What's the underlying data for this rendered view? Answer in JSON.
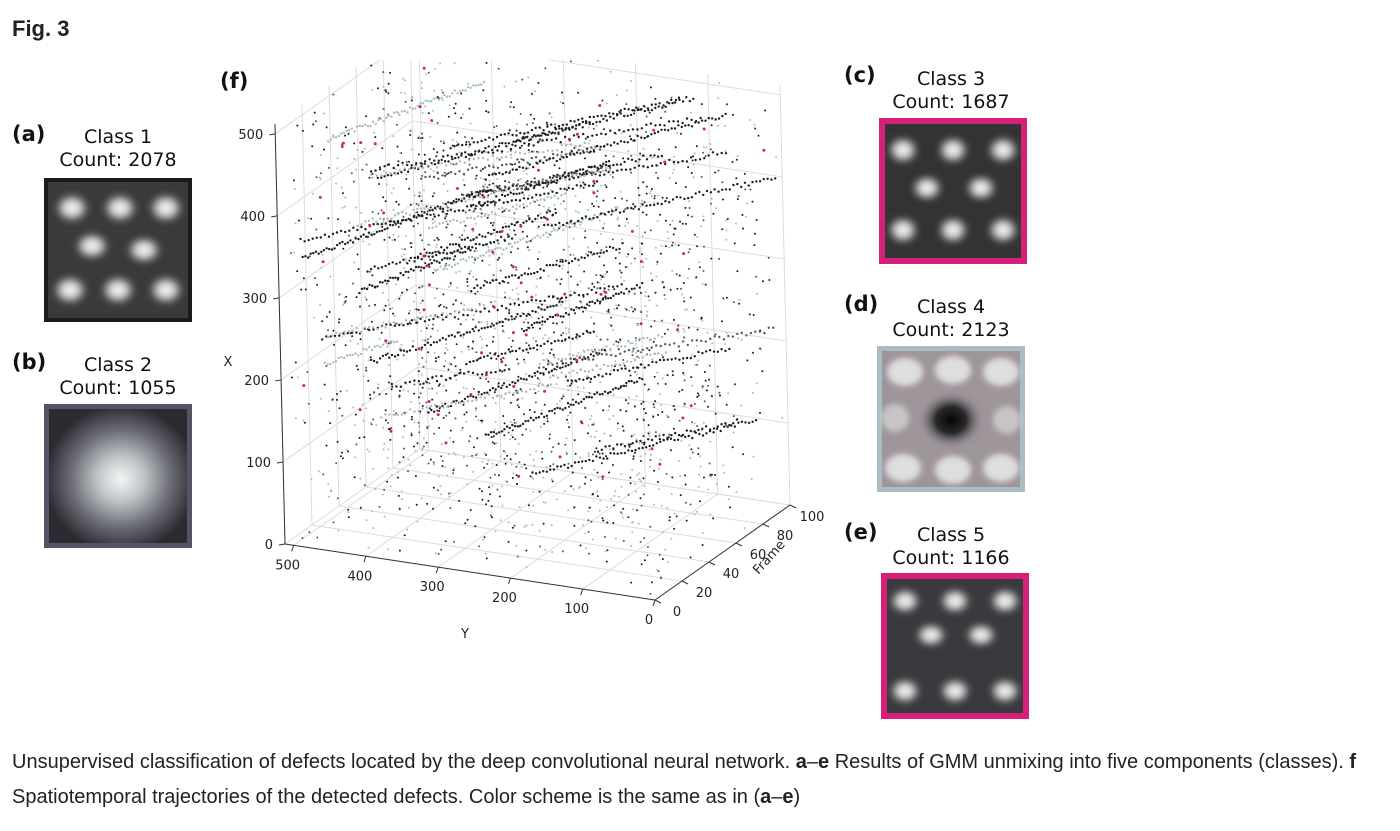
{
  "figure_label": "Fig. 3",
  "panels": [
    {
      "letter": "(a)",
      "class_title": "Class 1",
      "count": "Count: 2078",
      "frame_color": "#1c1c1c"
    },
    {
      "letter": "(b)",
      "class_title": "Class 2",
      "count": "Count: 1055",
      "frame_color": "#565366"
    },
    {
      "letter": "(c)",
      "class_title": "Class 3",
      "count": "Count: 1687",
      "frame_color": "#d6207a"
    },
    {
      "letter": "(d)",
      "class_title": "Class 4",
      "count": "Count: 2123",
      "frame_color": "#a8bcc3"
    },
    {
      "letter": "(e)",
      "class_title": "Class 5",
      "count": "Count: 1166",
      "frame_color": "#d6207a"
    }
  ],
  "plot": {
    "letter": "(f)",
    "x_label": "X",
    "y_label": "Y",
    "frame_label": "Frame",
    "x_ticks": [
      "0",
      "100",
      "200",
      "300",
      "400",
      "500"
    ],
    "y_ticks": [
      "500",
      "400",
      "300",
      "200",
      "100",
      "0"
    ],
    "frame_ticks": [
      "0",
      "20",
      "40",
      "60",
      "80",
      "100"
    ],
    "colors": {
      "class1": "#1c1c1c",
      "class2": "#5a5668",
      "class3": "#d6207a",
      "class4": "#a8bcc3"
    }
  },
  "caption": {
    "p1": "Unsupervised classification of defects located by the deep convolutional neural network. ",
    "b1": "a",
    "p2": "–",
    "b2": "e",
    "p3": " Results of GMM unmixing into five components (classes). ",
    "b3": "f",
    "p4": " Spatiotemporal trajectories of the detected defects. Color scheme is the same as in (",
    "b4": "a",
    "p5": "–",
    "b5": "e",
    "p6": ")"
  }
}
